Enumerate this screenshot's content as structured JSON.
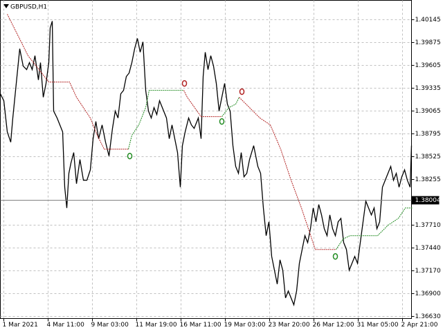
{
  "chart_data": {
    "type": "line",
    "title": "GBPUSD,H1",
    "xlim": [
      0,
      594
    ],
    "xticks": [
      {
        "value": 4,
        "label": "1 Mar 2021"
      },
      {
        "value": 68,
        "label": "4 Mar 11:00"
      },
      {
        "value": 132,
        "label": "9 Mar 03:00"
      },
      {
        "value": 196,
        "label": "11 Mar 19:00"
      },
      {
        "value": 260,
        "label": "16 Mar 11:00"
      },
      {
        "value": 324,
        "label": "19 Mar 03:00"
      },
      {
        "value": 388,
        "label": "23 Mar 20:00"
      },
      {
        "value": 452,
        "label": "26 Mar 12:00"
      },
      {
        "value": 516,
        "label": "31 Mar 05:00"
      },
      {
        "value": 580,
        "label": "2 Apr 21:00"
      }
    ],
    "ylim": [
      1.366,
      1.4037
    ],
    "yticks": [
      1.40145,
      1.39875,
      1.39605,
      1.39335,
      1.39065,
      1.38795,
      1.38525,
      1.38255,
      {
        "value": 1.3771,
        "label": "1.37710"
      },
      {
        "value": 1.3744,
        "label": "1.37440"
      },
      {
        "value": 1.3717,
        "label": "1.37170"
      },
      {
        "value": 1.369,
        "label": "1.36900"
      },
      {
        "value": 1.3663,
        "label": "1.36630"
      }
    ],
    "current_price": 1.38004,
    "grid": true,
    "series": [
      {
        "color": "#000000",
        "x": [
          0,
          5,
          10,
          15,
          18,
          22,
          28,
          33,
          38,
          42,
          46,
          50,
          55,
          58,
          62,
          66,
          70,
          72,
          75,
          77,
          82,
          86,
          90,
          93,
          96,
          99,
          102,
          106,
          110,
          115,
          120,
          125,
          130,
          134,
          138,
          142,
          147,
          152,
          157,
          162,
          166,
          170,
          174,
          178,
          182,
          186,
          190,
          194,
          198,
          202,
          206,
          210,
          214,
          218,
          222,
          226,
          230,
          236,
          240,
          244,
          248,
          252,
          256,
          260,
          263,
          267,
          272,
          276,
          280,
          286,
          290,
          293,
          296,
          300,
          304,
          308,
          312,
          316,
          320,
          324,
          328,
          332,
          336,
          340,
          344,
          348,
          352,
          356,
          360,
          366,
          372,
          376,
          380,
          384,
          388,
          392,
          396,
          400,
          404,
          408,
          412,
          416,
          420,
          424,
          428,
          432,
          436,
          440,
          444,
          448,
          452,
          456,
          460,
          464,
          468,
          472,
          476,
          480,
          484,
          488,
          492,
          496,
          500,
          504,
          508,
          512,
          516,
          520,
          524,
          528,
          532,
          536,
          540,
          544,
          548,
          552,
          556,
          560,
          564,
          568,
          572,
          576,
          580,
          584,
          588,
          592,
          594
        ],
        "values": [
          1.39263,
          1.39181,
          1.38812,
          1.38689,
          1.38976,
          1.39304,
          1.39796,
          1.39591,
          1.3955,
          1.39632,
          1.3955,
          1.39714,
          1.39427,
          1.39632,
          1.39222,
          1.39386,
          1.39632,
          1.40042,
          1.40124,
          1.39058,
          1.38976,
          1.38894,
          1.38812,
          1.38156,
          1.3791,
          1.3832,
          1.38443,
          1.38566,
          1.38197,
          1.38484,
          1.38238,
          1.38238,
          1.38361,
          1.3873,
          1.38935,
          1.3873,
          1.38894,
          1.38689,
          1.38525,
          1.38853,
          1.39058,
          1.38976,
          1.39263,
          1.39304,
          1.39468,
          1.39509,
          1.39632,
          1.39796,
          1.39919,
          1.39755,
          1.39878,
          1.39304,
          1.39058,
          1.38976,
          1.39099,
          1.39017,
          1.39181,
          1.39058,
          1.38976,
          1.3873,
          1.38894,
          1.3873,
          1.38566,
          1.38156,
          1.38648,
          1.38812,
          1.38976,
          1.38894,
          1.38853,
          1.38976,
          1.3873,
          1.39468,
          1.39755,
          1.3955,
          1.39714,
          1.39591,
          1.39386,
          1.39058,
          1.39222,
          1.39386,
          1.3914,
          1.39058,
          1.38648,
          1.38402,
          1.3832,
          1.38566,
          1.38279,
          1.3832,
          1.38484,
          1.38648,
          1.38402,
          1.3832,
          1.3791,
          1.37582,
          1.37746,
          1.37336,
          1.37172,
          1.37008,
          1.37295,
          1.37172,
          1.36844,
          1.36926,
          1.36844,
          1.36762,
          1.36926,
          1.37254,
          1.37418,
          1.37582,
          1.375,
          1.37664,
          1.3791,
          1.37746,
          1.37951,
          1.37828,
          1.37664,
          1.37582,
          1.37828,
          1.37664,
          1.37582,
          1.37746,
          1.37787,
          1.375,
          1.37418,
          1.37172,
          1.37254,
          1.37336,
          1.37254,
          1.375,
          1.37746,
          1.37992,
          1.3791,
          1.37828,
          1.3791,
          1.37664,
          1.37746,
          1.38156,
          1.38238,
          1.3832,
          1.38402,
          1.38238,
          1.3832,
          1.38156,
          1.38279,
          1.38361,
          1.38238,
          1.38156,
          1.38648
        ]
      },
      {
        "color": "#b22222",
        "x": [
          10,
          40,
          70,
          100,
          110,
          130,
          140,
          150,
          185
        ],
        "values": [
          1.40206,
          1.39714,
          1.39402,
          1.39402,
          1.39222,
          1.38976,
          1.38771,
          1.38607,
          1.38607
        ]
      },
      {
        "color": "#228b22",
        "x": [
          185,
          190,
          200,
          210,
          215,
          235,
          265
        ],
        "values": [
          1.38607,
          1.38771,
          1.38894,
          1.39099,
          1.39304,
          1.39304,
          1.39304
        ]
      },
      {
        "color": "#b22222",
        "x": [
          265,
          270,
          290,
          320
        ],
        "values": [
          1.39304,
          1.39222,
          1.38992,
          1.38992
        ]
      },
      {
        "color": "#228b22",
        "x": [
          320,
          330,
          340,
          345
        ],
        "values": [
          1.38992,
          1.39099,
          1.3914,
          1.39222
        ]
      },
      {
        "color": "#b22222",
        "x": [
          345,
          360,
          375,
          390,
          405,
          420,
          435,
          445,
          455,
          485
        ],
        "values": [
          1.39222,
          1.39099,
          1.38976,
          1.38894,
          1.38607,
          1.38238,
          1.3791,
          1.37664,
          1.37418,
          1.37418
        ]
      },
      {
        "color": "#228b22",
        "x": [
          485,
          495,
          505,
          520,
          545,
          560,
          575,
          585,
          595
        ],
        "values": [
          1.37418,
          1.37541,
          1.37582,
          1.37582,
          1.37582,
          1.37705,
          1.37787,
          1.3791,
          1.3791
        ]
      }
    ],
    "markers": [
      {
        "x": 187,
        "value": 1.38525,
        "color": "#228b22"
      },
      {
        "x": 266,
        "value": 1.39386,
        "color": "#b22222"
      },
      {
        "x": 320,
        "value": 1.38935,
        "color": "#228b22"
      },
      {
        "x": 349,
        "value": 1.39288,
        "color": "#b22222"
      },
      {
        "x": 484,
        "value": 1.37336,
        "color": "#228b22"
      }
    ]
  }
}
